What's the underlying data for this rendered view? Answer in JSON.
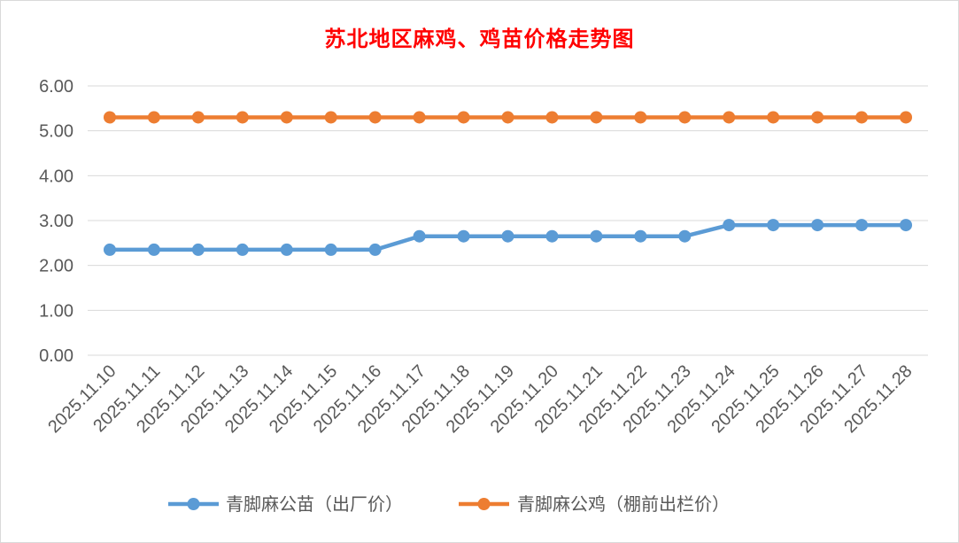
{
  "chart_data": {
    "type": "line",
    "title": "苏北地区麻鸡、鸡苗价格走势图",
    "x": [
      "2025.11.10",
      "2025.11.11",
      "2025.11.12",
      "2025.11.13",
      "2025.11.14",
      "2025.11.15",
      "2025.11.16",
      "2025.11.17",
      "2025.11.18",
      "2025.11.19",
      "2025.11.20",
      "2025.11.21",
      "2025.11.22",
      "2025.11.23",
      "2025.11.24",
      "2025.11.25",
      "2025.11.26",
      "2025.11.27",
      "2025.11.28"
    ],
    "yticks": [
      "0.00",
      "1.00",
      "2.00",
      "3.00",
      "4.00",
      "5.00",
      "6.00"
    ],
    "ylim": [
      0,
      6
    ],
    "grid": true,
    "legend_position": "bottom",
    "series": [
      {
        "name": "青脚麻公苗（出厂价）",
        "color": "#5b9bd5",
        "values": [
          2.35,
          2.35,
          2.35,
          2.35,
          2.35,
          2.35,
          2.35,
          2.65,
          2.65,
          2.65,
          2.65,
          2.65,
          2.65,
          2.65,
          2.9,
          2.9,
          2.9,
          2.9,
          2.9
        ]
      },
      {
        "name": "青脚麻公鸡（棚前出栏价）",
        "color": "#ed7d31",
        "values": [
          5.3,
          5.3,
          5.3,
          5.3,
          5.3,
          5.3,
          5.3,
          5.3,
          5.3,
          5.3,
          5.3,
          5.3,
          5.3,
          5.3,
          5.3,
          5.3,
          5.3,
          5.3,
          5.3
        ]
      }
    ]
  }
}
